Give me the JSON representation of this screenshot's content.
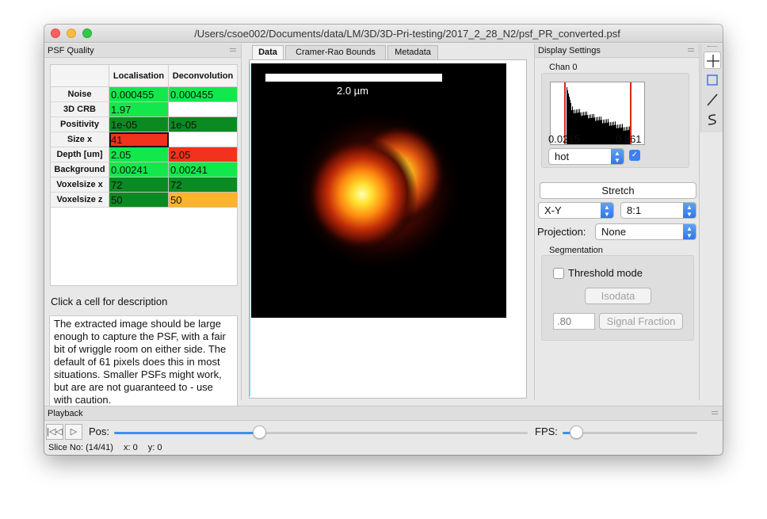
{
  "window": {
    "title": "/Users/csoe002/Documents/data/LM/3D/3D-Pri-testing/2017_2_28_N2/psf_PR_converted.psf"
  },
  "psf_quality": {
    "title": "PSF Quality",
    "columns": [
      "Localisation",
      "Deconvolution"
    ],
    "rows": [
      {
        "label": "Noise",
        "loc": "0.000455",
        "dec": "0.000455",
        "loc_color": "light-green",
        "dec_color": "light-green"
      },
      {
        "label": "3D CRB",
        "loc": "1.97",
        "dec": "",
        "loc_color": "light-green",
        "dec_color": "white"
      },
      {
        "label": "Positivity",
        "loc": "1e-05",
        "dec": "1e-05",
        "loc_color": "dark-green",
        "dec_color": "dark-green"
      },
      {
        "label": "Size x",
        "loc": "41",
        "dec": "",
        "loc_color": "red",
        "dec_color": "white",
        "selected": "loc"
      },
      {
        "label": "Depth [um]",
        "loc": "2.05",
        "dec": "2.05",
        "loc_color": "light-green",
        "dec_color": "red"
      },
      {
        "label": "Background",
        "loc": "0.00241",
        "dec": "0.00241",
        "loc_color": "light-green",
        "dec_color": "light-green"
      },
      {
        "label": "Voxelsize x",
        "loc": "72",
        "dec": "72",
        "loc_color": "dark-green",
        "dec_color": "dark-green"
      },
      {
        "label": "Voxelsize z",
        "loc": "50",
        "dec": "50",
        "loc_color": "dark-green",
        "dec_color": "orange"
      }
    ],
    "hint": "Click a cell for description",
    "description": "The extracted image should be large enough to capture the PSF, with a fair bit of wriggle room on either side. The default of 61 pixels does this in most situations. Smaller PSFs might work, but are are not guaranteed to - use with caution."
  },
  "tabs": [
    "Data",
    "Cramer-Rao Bounds",
    "Metadata"
  ],
  "image": {
    "scale_label": "2.0 µm",
    "colormap": "hot"
  },
  "display": {
    "title": "Display Settings",
    "chan_label": "Chan 0",
    "hist_min": "0.0215",
    "hist_max": "0.861",
    "colormap": "hot",
    "stretch_label": "Stretch",
    "view": "X-Y",
    "zoom": "8:1",
    "projection_label": "Projection:",
    "projection": "None",
    "segmentation_label": "Segmentation",
    "threshold_label": "Threshold mode",
    "isodata_label": "Isodata",
    "threshold_value": ".80",
    "signal_fraction_label": "Signal Fraction"
  },
  "playback": {
    "title": "Playback",
    "pos_label": "Pos:",
    "pos_fraction": 0.35,
    "fps_label": "FPS:",
    "fps_fraction": 0.1
  },
  "status": {
    "slice": "Slice No: (14/41)",
    "x": "x: 0",
    "y": "y: 0"
  },
  "colors": {
    "light_green": "#12e84c",
    "dark_green": "#0b8a22",
    "red": "#f1321d",
    "orange": "#fbb42c",
    "accent": "#3f8ef0"
  }
}
